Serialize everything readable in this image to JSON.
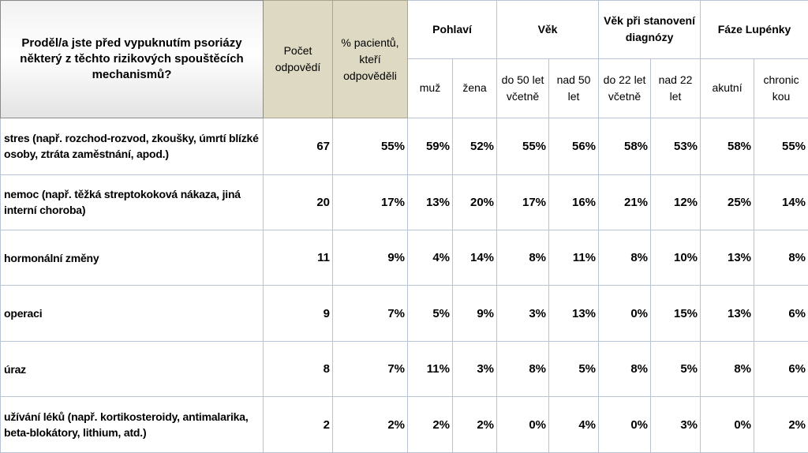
{
  "header": {
    "question": "Proděl/a jste před vypuknutím psoriázy některý z těchto rizikových spouštěcích mechanismů?",
    "count": "Počet odpovědí",
    "percent": "% pacientů, kteří odpověděli",
    "groups": [
      "Pohlaví",
      "Věk",
      "Věk při stanovení diagnózy",
      "Fáze Lupénky"
    ],
    "subs": [
      "muž",
      "žena",
      "do 50 let včetně",
      "nad 50 let",
      "do 22 let včetně",
      "nad 22 let",
      "akutní",
      "chronic kou"
    ]
  },
  "rows": [
    {
      "label": "stres (např. rozchod-rozvod, zkoušky, úmrtí blízké osoby, ztráta zaměstnání, apod.)",
      "count": "67",
      "values": [
        "55%",
        "59%",
        "52%",
        "55%",
        "56%",
        "58%",
        "53%",
        "58%",
        "55%"
      ]
    },
    {
      "label": "nemoc (např. těžká streptokoková nákaza, jiná interní choroba)",
      "count": "20",
      "values": [
        "17%",
        "13%",
        "20%",
        "17%",
        "16%",
        "21%",
        "12%",
        "25%",
        "14%"
      ]
    },
    {
      "label": "hormonální změny",
      "count": "11",
      "values": [
        "9%",
        "4%",
        "14%",
        "8%",
        "11%",
        "8%",
        "10%",
        "13%",
        "8%"
      ]
    },
    {
      "label": "operaci",
      "count": "9",
      "values": [
        "7%",
        "5%",
        "9%",
        "3%",
        "13%",
        "0%",
        "15%",
        "13%",
        "6%"
      ]
    },
    {
      "label": "úraz",
      "count": "8",
      "values": [
        "7%",
        "11%",
        "3%",
        "8%",
        "5%",
        "8%",
        "5%",
        "8%",
        "6%"
      ]
    },
    {
      "label": "užívání léků (např. kortikosteroidy, antimalarika, beta-blokátory, lithium, atd.)",
      "count": "2",
      "values": [
        "2%",
        "2%",
        "2%",
        "0%",
        "4%",
        "0%",
        "3%",
        "0%",
        "2%"
      ]
    }
  ]
}
